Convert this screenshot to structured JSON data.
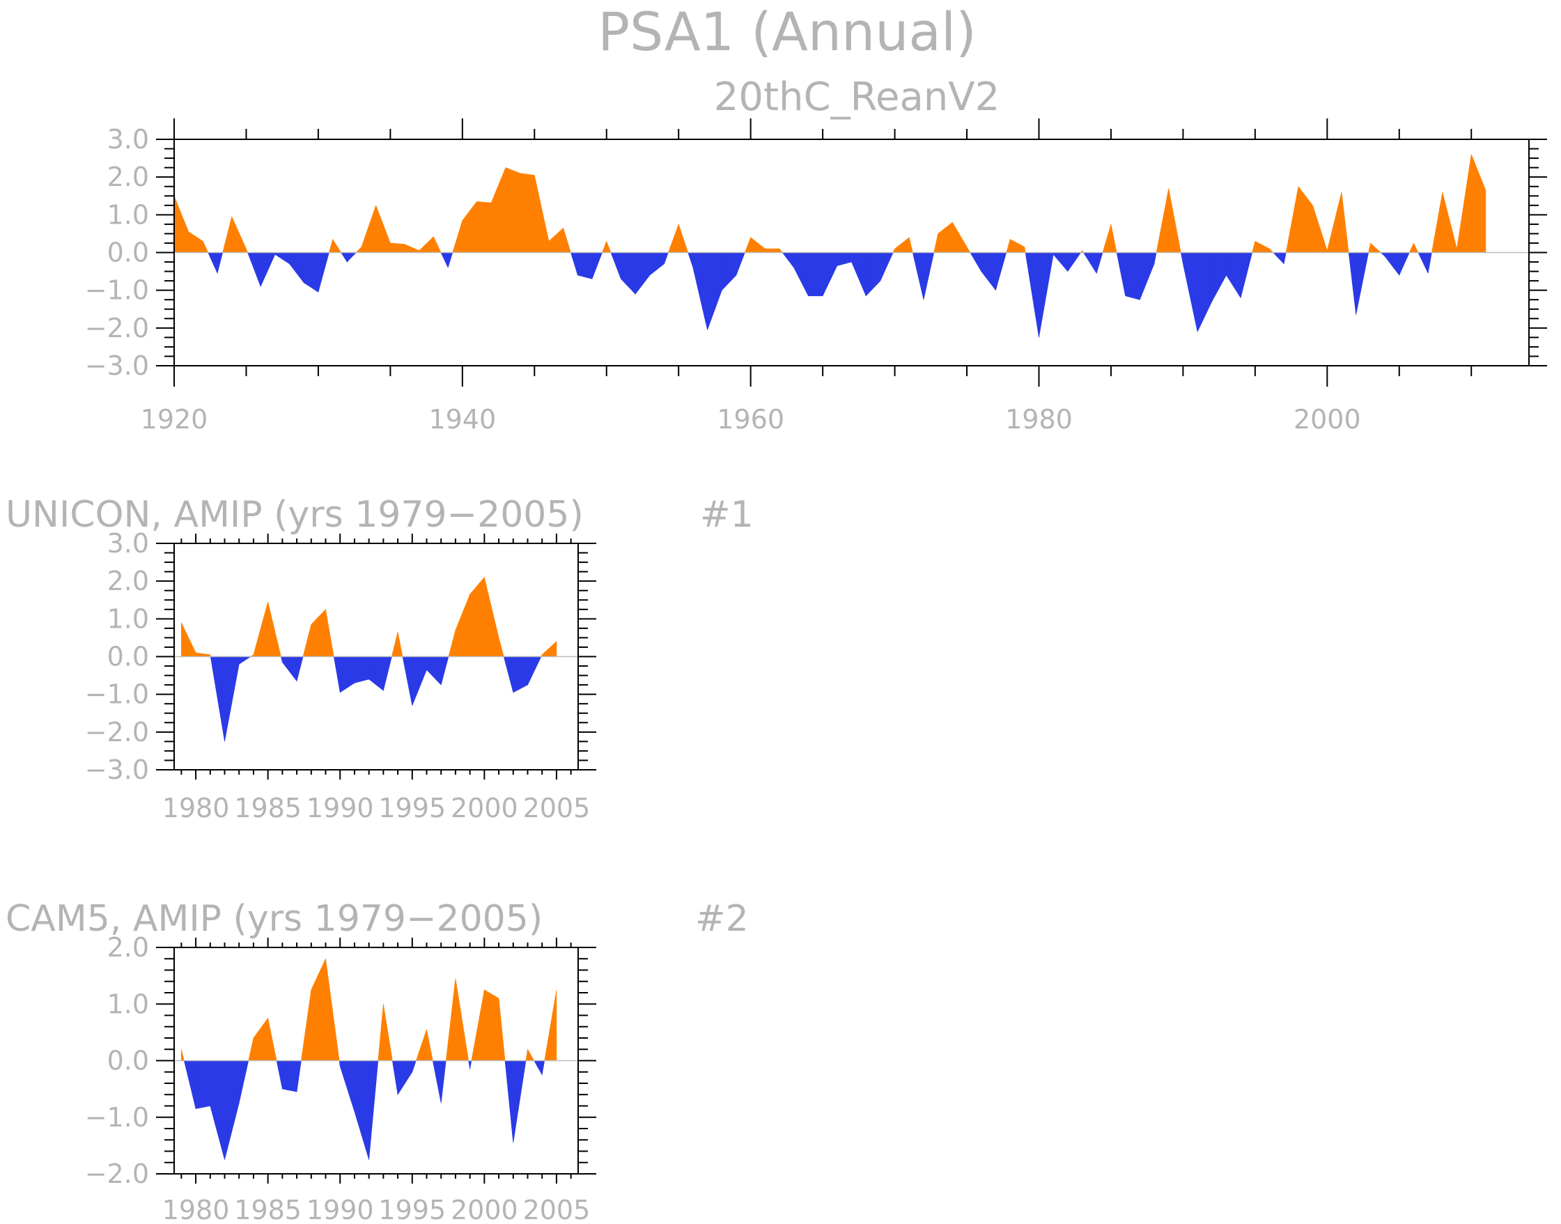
{
  "colors": {
    "positive": "#ff8000",
    "negative": "#2a3ae6",
    "text": "#b4b4b4"
  },
  "page": {
    "title": "PSA1 (Annual)",
    "subtitle": "20thC_ReanV2"
  },
  "chart_data": [
    {
      "type": "area",
      "title": "20thC_ReanV2",
      "xlabel": "",
      "ylabel": "",
      "xlim": [
        1920,
        2014
      ],
      "ylim": [
        -3,
        3
      ],
      "yticks": [
        -3,
        -2,
        -1,
        0,
        1,
        2,
        3
      ],
      "ytick_labels": [
        "−3.0",
        "−2.0",
        "−1.0",
        "0.0",
        "1.0",
        "2.0",
        "3.0"
      ],
      "xticks": [
        1920,
        1940,
        1960,
        1980,
        2000
      ],
      "xtick_labels": [
        "1920",
        "1940",
        "1960",
        "1980",
        "2000"
      ],
      "x": [
        1920,
        1921,
        1922,
        1923,
        1924,
        1925,
        1926,
        1927,
        1928,
        1929,
        1930,
        1931,
        1932,
        1933,
        1934,
        1935,
        1936,
        1937,
        1938,
        1939,
        1940,
        1941,
        1942,
        1943,
        1944,
        1945,
        1946,
        1947,
        1948,
        1949,
        1950,
        1951,
        1952,
        1953,
        1954,
        1955,
        1956,
        1957,
        1958,
        1959,
        1960,
        1961,
        1962,
        1963,
        1964,
        1965,
        1966,
        1967,
        1968,
        1969,
        1970,
        1971,
        1972,
        1973,
        1974,
        1975,
        1976,
        1977,
        1978,
        1979,
        1980,
        1981,
        1982,
        1983,
        1984,
        1985,
        1986,
        1987,
        1988,
        1989,
        1990,
        1991,
        1992,
        1993,
        1994,
        1995,
        1996,
        1997,
        1998,
        1999,
        2000,
        2001,
        2002,
        2003,
        2004,
        2005,
        2006,
        2007,
        2008,
        2009,
        2010,
        2011
      ],
      "values": [
        1.5,
        0.55,
        0.3,
        -0.55,
        0.95,
        0.1,
        -0.9,
        -0.05,
        -0.3,
        -0.8,
        -1.05,
        0.35,
        -0.25,
        0.15,
        1.25,
        0.25,
        0.22,
        0.05,
        0.42,
        -0.4,
        0.85,
        1.35,
        1.32,
        2.25,
        2.1,
        2.05,
        0.3,
        0.65,
        -0.6,
        -0.7,
        0.3,
        -0.7,
        -1.1,
        -0.6,
        -0.3,
        0.75,
        -0.4,
        -2.05,
        -1.0,
        -0.6,
        0.4,
        0.1,
        0.1,
        -0.4,
        -1.15,
        -1.15,
        -0.35,
        -0.25,
        -1.15,
        -0.75,
        0.1,
        0.4,
        -1.25,
        0.5,
        0.8,
        0.15,
        -0.5,
        -1.0,
        0.35,
        0.15,
        -2.25,
        -0.05,
        -0.5,
        0.05,
        -0.55,
        0.75,
        -1.15,
        -1.25,
        -0.3,
        1.7,
        -0.3,
        -2.1,
        -1.3,
        -0.6,
        -1.2,
        0.3,
        0.1,
        -0.3,
        1.75,
        1.25,
        0.05,
        1.6,
        -1.65,
        0.25,
        -0.1,
        -0.6,
        0.25,
        -0.55,
        1.6,
        0.1,
        2.6,
        1.65
      ]
    },
    {
      "type": "area",
      "title": "UNICON, AMIP (yrs 1979−2005)",
      "tag": "#1",
      "xlabel": "",
      "ylabel": "",
      "xlim": [
        1978.5,
        2006.5
      ],
      "ylim": [
        -3,
        3
      ],
      "yticks": [
        -3,
        -2,
        -1,
        0,
        1,
        2,
        3
      ],
      "ytick_labels": [
        "−3.0",
        "−2.0",
        "−1.0",
        "0.0",
        "1.0",
        "2.0",
        "3.0"
      ],
      "xticks": [
        1980,
        1985,
        1990,
        1995,
        2000,
        2005
      ],
      "xtick_labels": [
        "1980",
        "1985",
        "1990",
        "1995",
        "2000",
        "2005"
      ],
      "x": [
        1979,
        1980,
        1981,
        1982,
        1983,
        1984,
        1985,
        1986,
        1987,
        1988,
        1989,
        1990,
        1991,
        1992,
        1993,
        1994,
        1995,
        1996,
        1997,
        1998,
        1999,
        2000,
        2001,
        2002,
        2003,
        2004,
        2005
      ],
      "values": [
        0.9,
        0.1,
        0.05,
        -2.25,
        -0.2,
        0.05,
        1.45,
        -0.15,
        -0.65,
        0.85,
        1.25,
        -0.95,
        -0.7,
        -0.6,
        -0.9,
        0.65,
        -1.3,
        -0.35,
        -0.75,
        0.7,
        1.65,
        2.1,
        0.5,
        -0.95,
        -0.75,
        0.05,
        0.4
      ]
    },
    {
      "type": "area",
      "title": "CAM5, AMIP (yrs 1979−2005)",
      "tag": "#2",
      "xlabel": "",
      "ylabel": "",
      "xlim": [
        1978.5,
        2006.5
      ],
      "ylim": [
        -2,
        2
      ],
      "yticks": [
        -2,
        -1,
        0,
        1,
        2
      ],
      "ytick_labels": [
        "−2.0",
        "−1.0",
        "0.0",
        "1.0",
        "2.0"
      ],
      "xticks": [
        1980,
        1985,
        1990,
        1995,
        2000,
        2005
      ],
      "xtick_labels": [
        "1980",
        "1985",
        "1990",
        "1995",
        "2000",
        "2005"
      ],
      "x": [
        1979,
        1980,
        1981,
        1982,
        1983,
        1984,
        1985,
        1986,
        1987,
        1988,
        1989,
        1990,
        1991,
        1992,
        1993,
        1994,
        1995,
        1996,
        1997,
        1998,
        1999,
        2000,
        2001,
        2002,
        2003,
        2004,
        2005
      ],
      "values": [
        0.2,
        -0.85,
        -0.8,
        -1.75,
        -0.75,
        0.4,
        0.75,
        -0.5,
        -0.55,
        1.25,
        1.8,
        -0.1,
        -0.9,
        -1.75,
        1.0,
        -0.6,
        -0.2,
        0.55,
        -0.75,
        1.45,
        -0.15,
        1.25,
        1.1,
        -1.45,
        0.2,
        -0.25,
        1.25
      ]
    }
  ]
}
